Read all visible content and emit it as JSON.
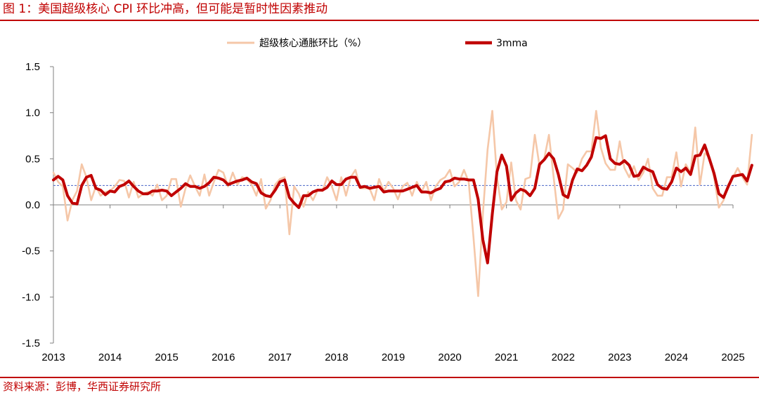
{
  "page": {
    "title": "图 1：美国超级核心 CPI 环比冲高，但可能是暂时性因素推动",
    "source": "资料来源：彭博，华西证券研究所"
  },
  "colors": {
    "accent": "#c00000",
    "series_monthly": "#f5c7a8",
    "series_3mma": "#c00000",
    "reference_line": "#4a66c8"
  },
  "chart_data": {
    "type": "line",
    "xlabel": "",
    "ylabel": "",
    "ylim": [
      -1.5,
      1.5
    ],
    "yticks": [
      -1.5,
      -1.0,
      -0.5,
      0.0,
      0.5,
      1.0,
      1.5
    ],
    "ytick_labels": [
      "-1.5",
      "-1.0",
      "-0.5",
      "0.0",
      "0.5",
      "1.0",
      "1.5"
    ],
    "x_start": "2013-01",
    "x_end": "2025-01",
    "x_tick_labels": [
      "2013",
      "2014",
      "2015",
      "2016",
      "2017",
      "2018",
      "2019",
      "2020",
      "2021",
      "2022",
      "2023",
      "2024",
      "2025"
    ],
    "legend_placement": "top",
    "reference_line_value": 0.21,
    "series": [
      {
        "name": "超级核心通胀环比（%）",
        "values": [
          0.35,
          0.25,
          0.2,
          -0.17,
          0.05,
          0.15,
          0.44,
          0.3,
          0.05,
          0.2,
          0.1,
          0.14,
          0.15,
          0.2,
          0.27,
          0.26,
          0.08,
          0.25,
          0.08,
          0.12,
          0.14,
          0.1,
          0.22,
          0.05,
          0.1,
          0.28,
          0.28,
          -0.02,
          0.18,
          0.32,
          0.2,
          0.1,
          0.33,
          0.1,
          0.25,
          0.38,
          0.35,
          0.2,
          0.35,
          0.22,
          0.3,
          0.28,
          0.22,
          0.1,
          0.28,
          -0.04,
          0.05,
          0.22,
          0.28,
          0.3,
          -0.32,
          0.2,
          0.12,
          -0.02,
          0.14,
          0.05,
          0.16,
          0.15,
          0.3,
          0.2,
          0.05,
          0.3,
          0.1,
          0.3,
          0.38,
          0.18,
          0.18,
          0.18,
          0.05,
          0.28,
          0.15,
          0.25,
          0.18,
          0.06,
          0.2,
          0.24,
          0.1,
          0.25,
          0.14,
          0.25,
          0.05,
          0.2,
          0.27,
          0.3,
          0.38,
          0.2,
          0.25,
          0.38,
          0.25,
          -0.35,
          -0.99,
          -0.1,
          0.6,
          1.02,
          0.3,
          -0.05,
          0.03,
          0.46,
          0.05,
          -0.05,
          0.28,
          0.3,
          0.76,
          0.42,
          0.5,
          0.76,
          0.3,
          -0.15,
          -0.05,
          0.44,
          0.4,
          0.35,
          0.5,
          0.58,
          0.58,
          1.02,
          0.62,
          0.45,
          0.38,
          0.38,
          0.69,
          0.4,
          0.3,
          0.42,
          0.27,
          0.35,
          0.5,
          0.18,
          0.1,
          0.1,
          0.3,
          0.3,
          0.57,
          0.2,
          0.44,
          0.35,
          0.84,
          0.22,
          0.56,
          0.52,
          0.3,
          -0.03,
          0.05,
          0.22,
          0.3,
          0.4,
          0.3,
          0.22,
          0.76
        ]
      },
      {
        "name": "3mma",
        "values": [
          0.27,
          0.31,
          0.27,
          0.1,
          0.02,
          0.01,
          0.21,
          0.3,
          0.32,
          0.18,
          0.16,
          0.11,
          0.15,
          0.14,
          0.2,
          0.22,
          0.26,
          0.2,
          0.15,
          0.12,
          0.12,
          0.15,
          0.15,
          0.16,
          0.15,
          0.1,
          0.14,
          0.18,
          0.23,
          0.2,
          0.2,
          0.18,
          0.2,
          0.24,
          0.3,
          0.29,
          0.27,
          0.22,
          0.24,
          0.26,
          0.27,
          0.29,
          0.25,
          0.23,
          0.13,
          0.1,
          0.09,
          0.16,
          0.25,
          0.27,
          0.08,
          0.02,
          -0.03,
          0.1,
          0.1,
          0.14,
          0.16,
          0.16,
          0.19,
          0.26,
          0.22,
          0.22,
          0.28,
          0.3,
          0.3,
          0.19,
          0.2,
          0.18,
          0.19,
          0.2,
          0.14,
          0.15,
          0.15,
          0.15,
          0.15,
          0.17,
          0.19,
          0.21,
          0.14,
          0.14,
          0.13,
          0.16,
          0.18,
          0.25,
          0.26,
          0.29,
          0.28,
          0.28,
          0.27,
          0.27,
          0.06,
          -0.38,
          -0.63,
          -0.1,
          0.36,
          0.54,
          0.42,
          0.05,
          0.13,
          0.17,
          0.15,
          0.1,
          0.18,
          0.44,
          0.49,
          0.56,
          0.5,
          0.33,
          0.11,
          0.08,
          0.27,
          0.39,
          0.37,
          0.43,
          0.52,
          0.73,
          0.72,
          0.75,
          0.5,
          0.45,
          0.44,
          0.48,
          0.43,
          0.31,
          0.32,
          0.41,
          0.38,
          0.36,
          0.22,
          0.18,
          0.17,
          0.25,
          0.4,
          0.36,
          0.4,
          0.33,
          0.53,
          0.54,
          0.65,
          0.5,
          0.34,
          0.12,
          0.08,
          0.2,
          0.31,
          0.32,
          0.33,
          0.26,
          0.43
        ]
      }
    ]
  }
}
